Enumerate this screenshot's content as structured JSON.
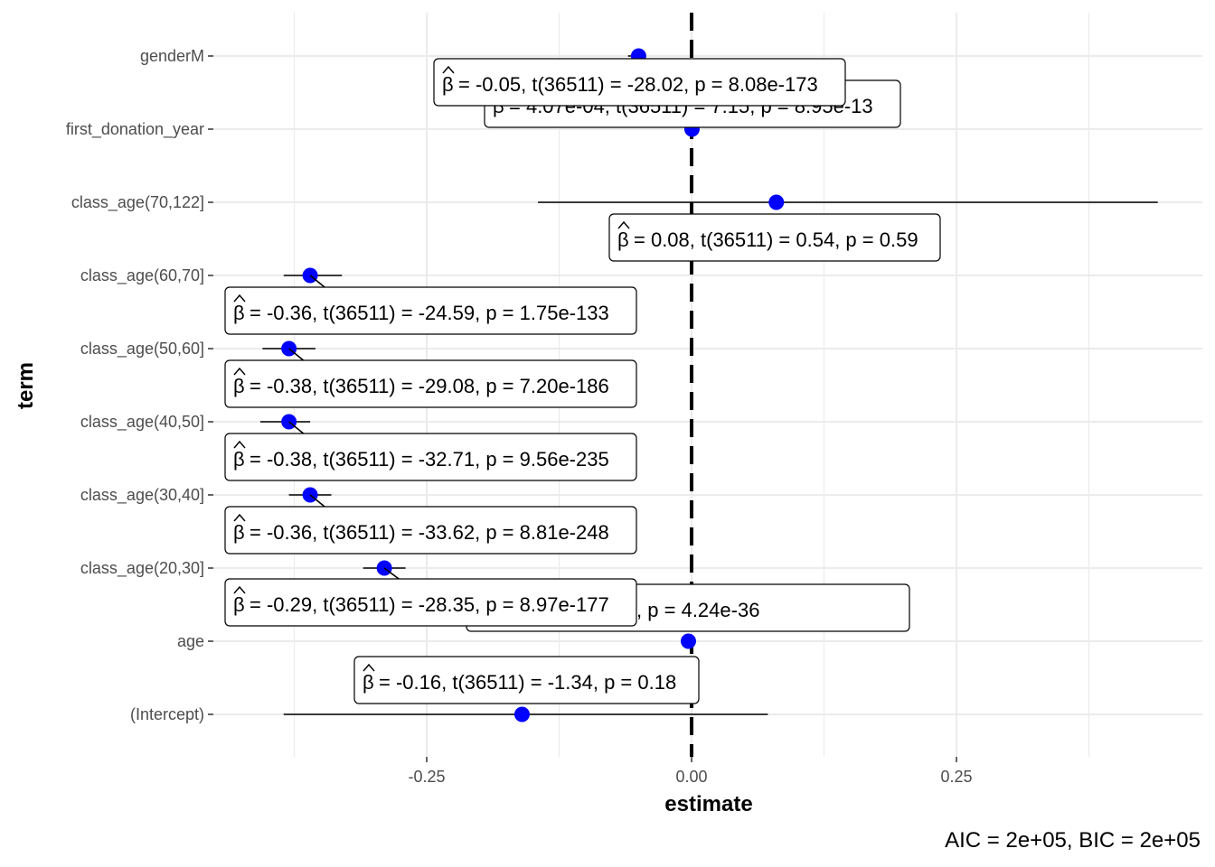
{
  "chart_data": {
    "type": "dot-whisker",
    "xlabel": "estimate",
    "ylabel": "term",
    "caption": "AIC = 2e+05, BIC = 2e+05",
    "xlim": [
      -0.4,
      0.48
    ],
    "x_ticks": [
      {
        "value": -0.25,
        "label": "-0.25"
      },
      {
        "value": 0.0,
        "label": "0.00"
      },
      {
        "value": 0.25,
        "label": "0.25"
      }
    ],
    "reference_line": 0,
    "grid": true,
    "point_color": "#0000ff",
    "terms": [
      {
        "term": "genderM",
        "estimate": -0.05,
        "conf_low": -0.06,
        "conf_high": -0.045,
        "label": "-0.05, t(36511) = -28.02, p = 8.08e-173"
      },
      {
        "term": "first_donation_year",
        "estimate": 0.0004,
        "conf_low": 0.0003,
        "conf_high": 0.0005,
        "label": "4.07e-04, t(36511) = 7.15, p = 8.95e-13"
      },
      {
        "term": "class_age(70,122]",
        "estimate": 0.08,
        "conf_low": -0.145,
        "conf_high": 0.44,
        "label": "0.08, t(36511) = 0.54, p = 0.59"
      },
      {
        "term": "class_age(60,70]",
        "estimate": -0.36,
        "conf_low": -0.385,
        "conf_high": -0.33,
        "label": "-0.36, t(36511) = -24.59, p = 1.75e-133"
      },
      {
        "term": "class_age(50,60]",
        "estimate": -0.38,
        "conf_low": -0.405,
        "conf_high": -0.355,
        "label": "-0.38, t(36511) = -29.08, p = 7.20e-186"
      },
      {
        "term": "class_age(40,50]",
        "estimate": -0.38,
        "conf_low": -0.407,
        "conf_high": -0.36,
        "label": "-0.38, t(36511) = -32.71, p = 9.56e-235"
      },
      {
        "term": "class_age(30,40]",
        "estimate": -0.36,
        "conf_low": -0.38,
        "conf_high": -0.34,
        "label": "-0.36, t(36511) = -33.62, p = 8.81e-248"
      },
      {
        "term": "class_age(20,30]",
        "estimate": -0.29,
        "conf_low": -0.31,
        "conf_high": -0.27,
        "label": "-0.29, t(36511) = -28.35, p = 8.97e-177"
      },
      {
        "term": "age",
        "estimate": -0.003,
        "conf_low": -0.004,
        "conf_high": -0.002,
        "label": "6511) = -12.54, p = 4.24e-36"
      },
      {
        "term": "(Intercept)",
        "estimate": -0.16,
        "conf_low": -0.385,
        "conf_high": 0.072,
        "label": "-0.16, t(36511) = -1.34, p = 0.18"
      }
    ]
  }
}
